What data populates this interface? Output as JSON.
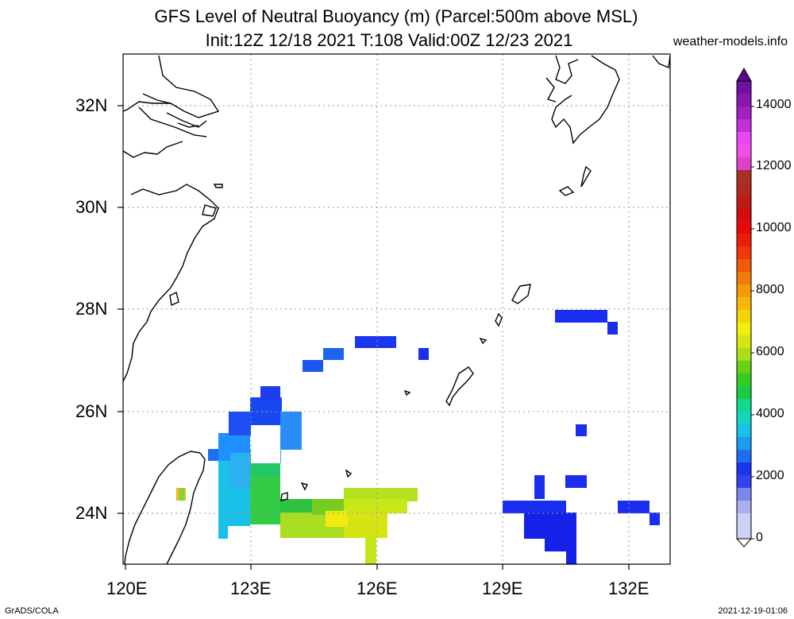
{
  "title": {
    "line1": "GFS Level of Neutral Buoyancy (m) (Parcel:500m above MSL)",
    "line2": "Init:12Z 12/18 2021 T:108 Valid:00Z 12/23 2021"
  },
  "site": "weather-models.info",
  "axes": {
    "lat_labels": [
      "32N",
      "30N",
      "28N",
      "26N",
      "24N"
    ],
    "lon_labels": [
      "120E",
      "123E",
      "126E",
      "129E",
      "132E"
    ]
  },
  "colorbar": {
    "labels": [
      "14000",
      "12000",
      "10000",
      "8000",
      "6000",
      "4000",
      "2000",
      "0"
    ]
  },
  "footer": {
    "left": "GrADS/COLA",
    "right": "2021-12-19-01:06"
  },
  "colors": {
    "gridline": "#999999",
    "coast": "#000000"
  }
}
